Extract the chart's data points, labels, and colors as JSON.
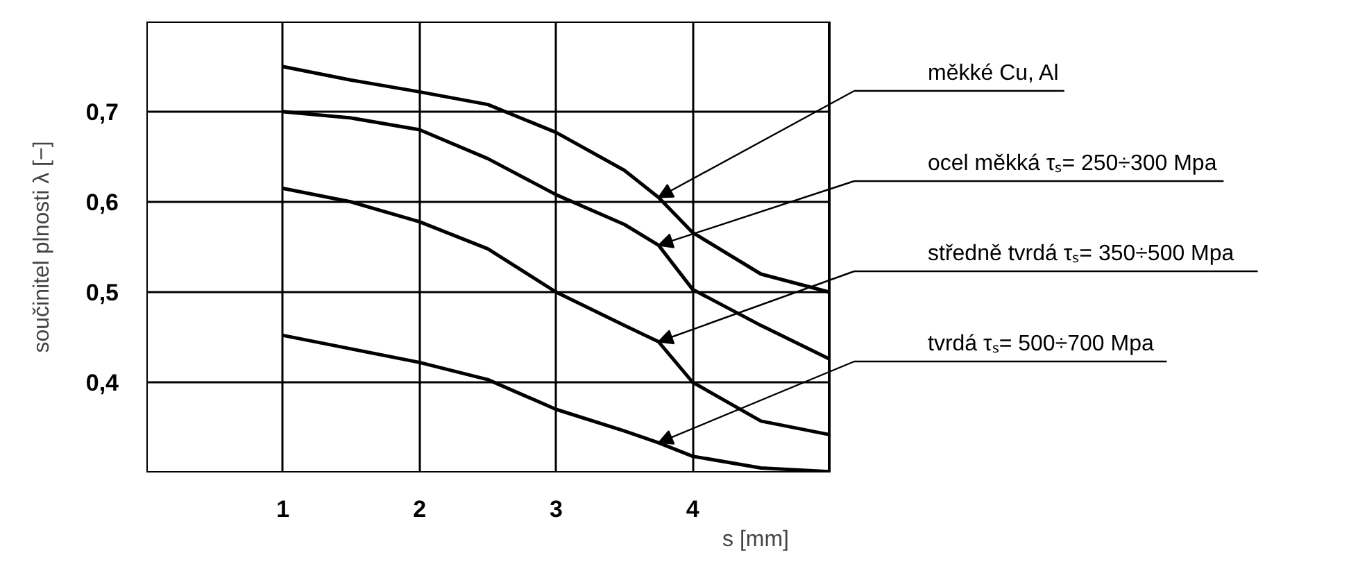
{
  "chart_data": {
    "type": "line",
    "xlabel": "s [mm]",
    "ylabel": "součinitel plnosti λ [−]",
    "x": [
      1,
      1.5,
      2,
      2.5,
      3,
      3.5,
      3.75,
      4,
      4.5,
      5
    ],
    "xlim": [
      0,
      5
    ],
    "xticks": [
      1,
      2,
      3,
      4
    ],
    "ylim": [
      0.3,
      0.8
    ],
    "yticks": [
      {
        "value": 0.4,
        "label": "0,4"
      },
      {
        "value": 0.5,
        "label": "0,5"
      },
      {
        "value": 0.6,
        "label": "0,6"
      },
      {
        "value": 0.7,
        "label": "0,7"
      }
    ],
    "grid": true,
    "marker": "none",
    "line_style": "solid",
    "legend": false,
    "series": [
      {
        "name": "měkké Cu, Al",
        "color": "#000000",
        "values": [
          0.75,
          0.735,
          0.722,
          0.708,
          0.677,
          0.635,
          0.605,
          0.566,
          0.52,
          0.5
        ]
      },
      {
        "name": "ocel měkká τₛ= 250÷300 Mpa",
        "color": "#000000",
        "values": [
          0.7,
          0.693,
          0.68,
          0.648,
          0.608,
          0.575,
          0.552,
          0.503,
          0.463,
          0.426
        ]
      },
      {
        "name": "středně tvrdá τₛ= 350÷500 Mpa",
        "color": "#000000",
        "values": [
          0.615,
          0.6,
          0.578,
          0.548,
          0.5,
          0.463,
          0.445,
          0.4,
          0.357,
          0.342
        ]
      },
      {
        "name": "tvrdá τₛ= 500÷700 Mpa",
        "color": "#000000",
        "values": [
          0.452,
          0.437,
          0.422,
          0.403,
          0.37,
          0.346,
          0.333,
          0.318,
          0.305,
          0.301
        ]
      }
    ]
  }
}
